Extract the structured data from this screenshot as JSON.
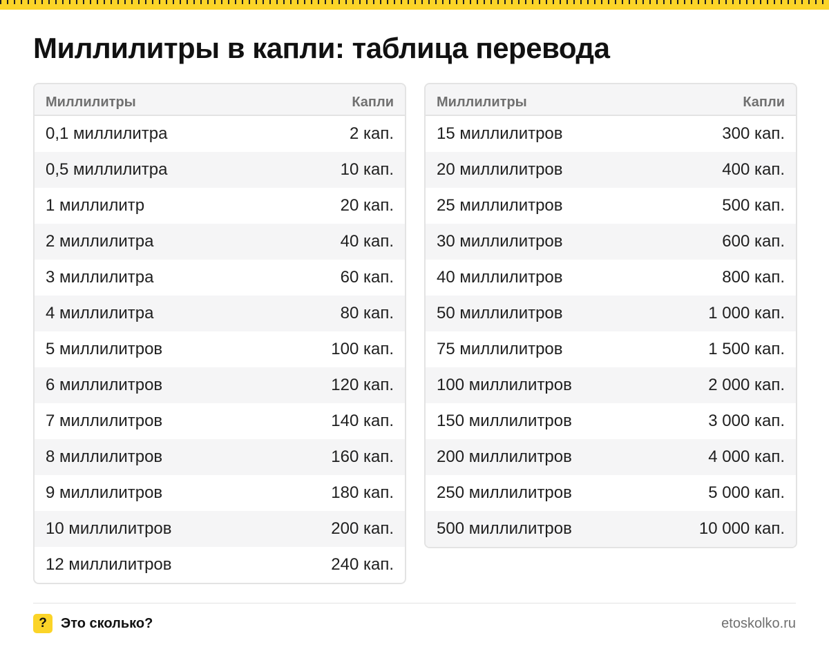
{
  "title": "Миллилитры в капли: таблица перевода",
  "columns": {
    "ml": "Миллилитры",
    "drops": "Капли"
  },
  "left_rows": [
    {
      "ml": "0,1 миллилитра",
      "drops": "2 кап."
    },
    {
      "ml": "0,5 миллилитра",
      "drops": "10 кап."
    },
    {
      "ml": "1 миллилитр",
      "drops": "20 кап."
    },
    {
      "ml": "2 миллилитра",
      "drops": "40 кап."
    },
    {
      "ml": "3 миллилитра",
      "drops": "60 кап."
    },
    {
      "ml": "4 миллилитра",
      "drops": "80 кап."
    },
    {
      "ml": "5 миллилитров",
      "drops": "100 кап."
    },
    {
      "ml": "6 миллилитров",
      "drops": "120 кап."
    },
    {
      "ml": "7 миллилитров",
      "drops": "140 кап."
    },
    {
      "ml": "8 миллилитров",
      "drops": "160 кап."
    },
    {
      "ml": "9 миллилитров",
      "drops": "180 кап."
    },
    {
      "ml": "10 миллилитров",
      "drops": "200 кап."
    },
    {
      "ml": "12 миллилитров",
      "drops": "240 кап."
    }
  ],
  "right_rows": [
    {
      "ml": "15 миллилитров",
      "drops": "300 кап."
    },
    {
      "ml": "20 миллилитров",
      "drops": "400 кап."
    },
    {
      "ml": "25 миллилитров",
      "drops": "500 кап."
    },
    {
      "ml": "30 миллилитров",
      "drops": "600 кап."
    },
    {
      "ml": "40 миллилитров",
      "drops": "800 кап."
    },
    {
      "ml": "50 миллилитров",
      "drops": "1 000 кап."
    },
    {
      "ml": "75 миллилитров",
      "drops": "1 500 кап."
    },
    {
      "ml": "100 миллилитров",
      "drops": "2 000 кап."
    },
    {
      "ml": "150 миллилитров",
      "drops": "3 000 кап."
    },
    {
      "ml": "200 миллилитров",
      "drops": "4 000 кап."
    },
    {
      "ml": "250 миллилитров",
      "drops": "5 000 кап."
    },
    {
      "ml": "500 миллилитров",
      "drops": "10 000 кап."
    }
  ],
  "footer": {
    "icon_symbol": "?",
    "brand": "Это сколько?",
    "site": "etoskolko.ru"
  },
  "colors": {
    "accent": "#fbd428",
    "text": "#1f1f1f",
    "muted": "#707070",
    "stripe": "#f5f5f6",
    "border": "#e3e3e3"
  }
}
